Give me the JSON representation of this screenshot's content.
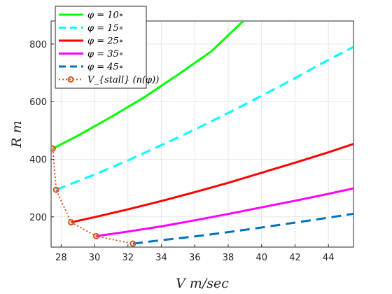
{
  "chart_data": {
    "type": "line",
    "title": "",
    "xlabel": "V  m/sec",
    "ylabel": "R  m",
    "xlim": [
      27.4,
      45.5
    ],
    "ylim": [
      95,
      880
    ],
    "xticks": [
      28,
      30,
      32,
      34,
      36,
      38,
      40,
      42,
      44
    ],
    "yticks": [
      200,
      400,
      600,
      800
    ],
    "grid": true,
    "legend_position": "top-left",
    "series": [
      {
        "name": "φ = 10∘",
        "color": "#00ff00",
        "dash": "solid",
        "width": 3,
        "x": [
          27.5,
          29,
          31,
          33,
          35,
          37,
          38.9
        ],
        "y": [
          437,
          482,
          547,
          616,
          694,
          775,
          880
        ]
      },
      {
        "name": "φ = 15∘",
        "color": "#00ffff",
        "dash": "dashed",
        "width": 3,
        "x": [
          27.7,
          30,
          32,
          34,
          36,
          38,
          40,
          42,
          44,
          45.5
        ],
        "y": [
          294,
          347,
          396,
          449,
          503,
          561,
          620,
          682,
          745,
          790
        ]
      },
      {
        "name": "φ = 25∘",
        "color": "#ff0000",
        "dash": "solid",
        "width": 3,
        "x": [
          28.6,
          30,
          32,
          34,
          36,
          38,
          40,
          42,
          44,
          45.5
        ],
        "y": [
          181,
          199,
          226,
          255,
          286,
          318,
          353,
          388,
          424,
          453
        ]
      },
      {
        "name": "φ = 35∘",
        "color": "#ff00ff",
        "dash": "solid",
        "width": 3,
        "x": [
          30.1,
          32,
          34,
          36,
          38,
          40,
          42,
          44,
          45.5
        ],
        "y": [
          133,
          149,
          167,
          188,
          210,
          233,
          256,
          280,
          299
        ]
      },
      {
        "name": "φ = 45∘",
        "color": "#0072bd",
        "dash": "dashed",
        "width": 3,
        "x": [
          32.3,
          34,
          36,
          38,
          40,
          42,
          44,
          45.5
        ],
        "y": [
          107,
          119,
          132,
          147,
          163,
          180,
          197,
          211
        ]
      },
      {
        "name": "V_{stall} (n(φ))",
        "color": "#d95319",
        "dash": "dotted",
        "width": 2,
        "marker": "circle",
        "x": [
          27.5,
          27.7,
          28.6,
          30.1,
          32.3
        ],
        "y": [
          437,
          294,
          181,
          133,
          107
        ]
      }
    ]
  }
}
